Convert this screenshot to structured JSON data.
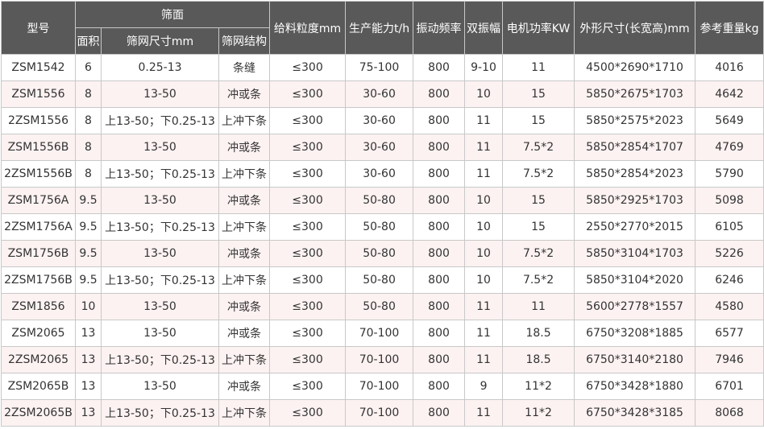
{
  "table": {
    "header": {
      "model": "型号",
      "screen": "筛面",
      "area": "面积",
      "mesh_size": "筛网尺寸mm",
      "mesh_structure": "筛网结构",
      "feed_size": "给料粒度mm",
      "capacity": "生产能力t/h",
      "frequency": "振动频率",
      "amplitude": "双振幅",
      "motor_power": "电机功率KW",
      "dimensions": "外形尺寸(长宽高)mm",
      "weight": "参考重量kg"
    },
    "rows": [
      [
        "ZSM1542",
        "6",
        "0.25-13",
        "条缝",
        "≤300",
        "75-100",
        "800",
        "9-10",
        "11",
        "4500*2690*1710",
        "4016"
      ],
      [
        "ZSM1556",
        "8",
        "13-50",
        "冲或条",
        "≤300",
        "30-60",
        "800",
        "10",
        "15",
        "5850*2675*1703",
        "4642"
      ],
      [
        "2ZSM1556",
        "8",
        "上13-50；下0.25-13",
        "上冲下条",
        "≤300",
        "30-60",
        "800",
        "11",
        "15",
        "5850*2575*2023",
        "5649"
      ],
      [
        "ZSM1556B",
        "8",
        "13-50",
        "冲或条",
        "≤300",
        "30-60",
        "800",
        "11",
        "7.5*2",
        "5850*2854*1707",
        "4769"
      ],
      [
        "2ZSM1556B",
        "8",
        "上13-50；下0.25-13",
        "上冲下条",
        "≤300",
        "30-60",
        "800",
        "11",
        "7.5*2",
        "5850*2854*2023",
        "5790"
      ],
      [
        "ZSM1756A",
        "9.5",
        "13-50",
        "冲或条",
        "≤300",
        "50-80",
        "800",
        "10",
        "15",
        "5850*2925*1703",
        "5098"
      ],
      [
        "2ZSM1756A",
        "9.5",
        "上13-50；下0.25-13",
        "上冲下条",
        "≤300",
        "50-80",
        "800",
        "10",
        "15",
        "2550*2770*2015",
        "6105"
      ],
      [
        "ZSM1756B",
        "9.5",
        "13-50",
        "冲或条",
        "≤300",
        "50-80",
        "800",
        "10",
        "7.5*2",
        "5850*3104*1703",
        "5226"
      ],
      [
        "2ZSM1756B",
        "9.5",
        "上13-50；下0.25-13",
        "上冲下条",
        "≤300",
        "50-80",
        "800",
        "10",
        "7.5*2",
        "5850*3104*2020",
        "6246"
      ],
      [
        "ZSM1856",
        "10",
        "13-50",
        "冲或条",
        "≤300",
        "50-80",
        "800",
        "11",
        "11",
        "5600*2778*1557",
        "4580"
      ],
      [
        "ZSM2065",
        "13",
        "13-50",
        "冲或条",
        "≤300",
        "70-100",
        "800",
        "11",
        "18.5",
        "6750*3208*1885",
        "6577"
      ],
      [
        "2ZSM2065",
        "13",
        "上13-50；下0.25-13",
        "上冲下条",
        "≤300",
        "70-100",
        "800",
        "11",
        "18.5",
        "6750*3140*2180",
        "7946"
      ],
      [
        "ZSM2065B",
        "13",
        "13-50",
        "冲或条",
        "≤300",
        "70-100",
        "800",
        "9",
        "11*2",
        "6750*3428*1880",
        "6701"
      ],
      [
        "2ZSM2065B",
        "13",
        "上13-50；下0.25-13",
        "上冲下条",
        "≤300",
        "70-100",
        "800",
        "11",
        "11*2",
        "6750*3428*3185",
        "8068"
      ]
    ]
  }
}
